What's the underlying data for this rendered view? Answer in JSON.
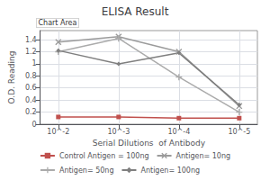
{
  "chart_data": {
    "type": "line",
    "title": "ELISA Result",
    "xlabel": "Serial Dilutions  of Antibody",
    "ylabel": "O.D. Reading",
    "annotations": [
      "Chart Area"
    ],
    "x": [
      0.01,
      0.001,
      0.0001,
      1e-05
    ],
    "series": [
      {
        "name": "Control Antigen = 100ng",
        "color": "#c0504d",
        "marker": "square",
        "values": [
          0.12,
          0.12,
          0.1,
          0.1
        ]
      },
      {
        "name": "Antigen= 10ng",
        "color": "#9b9b9b",
        "marker": "x",
        "values": [
          1.36,
          1.45,
          1.2,
          0.3
        ]
      },
      {
        "name": "Antigen= 50ng",
        "color": "#ababab",
        "marker": "plus",
        "values": [
          1.2,
          1.42,
          0.78,
          0.2
        ]
      },
      {
        "name": "Antigen= 100ng",
        "color": "#7f7f7f",
        "marker": "diamond",
        "values": [
          1.22,
          1.0,
          1.18,
          0.32
        ]
      }
    ],
    "log": "x",
    "xlim": [
      0.02,
      5e-06
    ],
    "xticks": [
      {
        "value": 0.01,
        "label": "10^-2"
      },
      {
        "value": 0.001,
        "label": "10^-3"
      },
      {
        "value": 0.0001,
        "label": "10^-4"
      },
      {
        "value": 1e-05,
        "label": "10^-5"
      }
    ],
    "ylim": [
      0,
      1.55
    ],
    "yticks": [
      0,
      0.2,
      0.4,
      0.6,
      0.8,
      1,
      1.2,
      1.4
    ],
    "grid": true,
    "legend": "bottom"
  }
}
